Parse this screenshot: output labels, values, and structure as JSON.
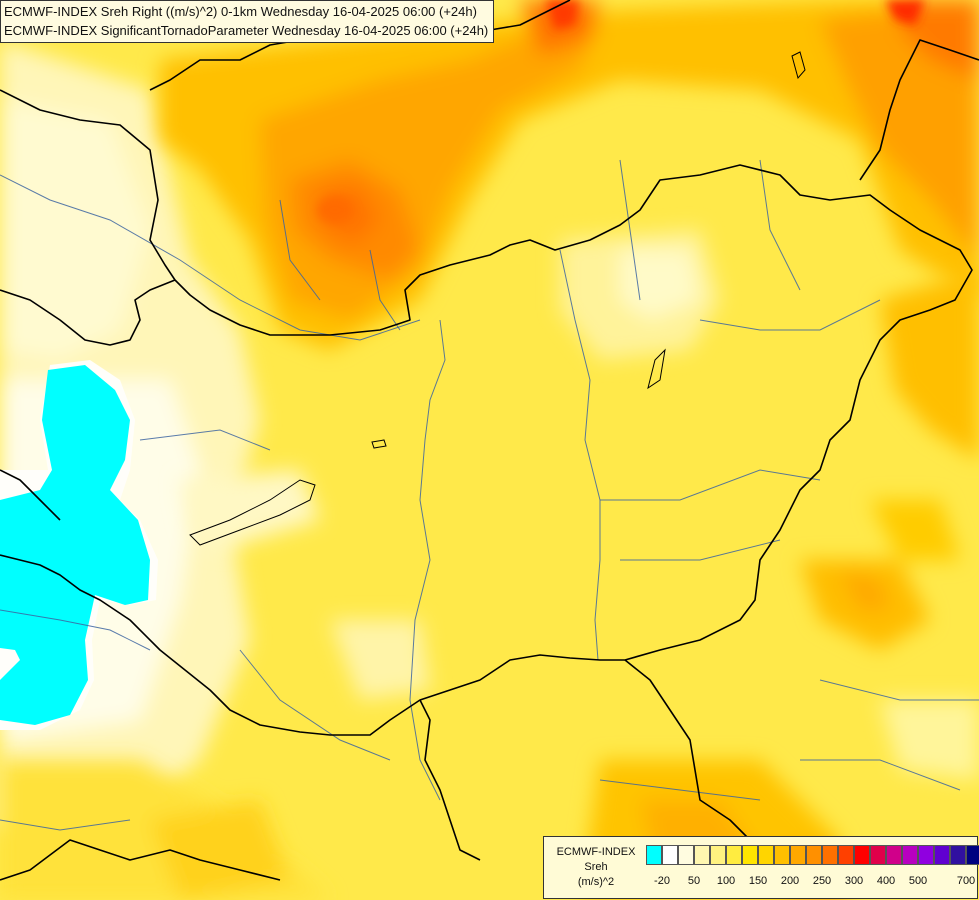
{
  "header": {
    "line1": "ECMWF-INDEX Sreh Right ((m/s)^2) 0-1km Wednesday 16-04-2025 06:00 (+24h)",
    "line2": "ECMWF-INDEX SignificantTornadoParameter Wednesday 16-04-2025 06:00 (+24h)"
  },
  "legend": {
    "title_lines": [
      "ECMWF-INDEX",
      "Sreh",
      "(m/s)^2"
    ],
    "colors": [
      "#00ffff",
      "#ffffff",
      "#fffce0",
      "#fff7b0",
      "#fff280",
      "#ffec40",
      "#ffe500",
      "#ffd500",
      "#ffbf00",
      "#ffa800",
      "#ff9000",
      "#ff7000",
      "#ff4000",
      "#ff0000",
      "#e0004a",
      "#d0008a",
      "#b800c0",
      "#9000e0",
      "#6000d0",
      "#3010a0",
      "#000080"
    ],
    "ticks": [
      "-20",
      "50",
      "100",
      "150",
      "200",
      "250",
      "300",
      "400",
      "500",
      "700"
    ]
  }
}
